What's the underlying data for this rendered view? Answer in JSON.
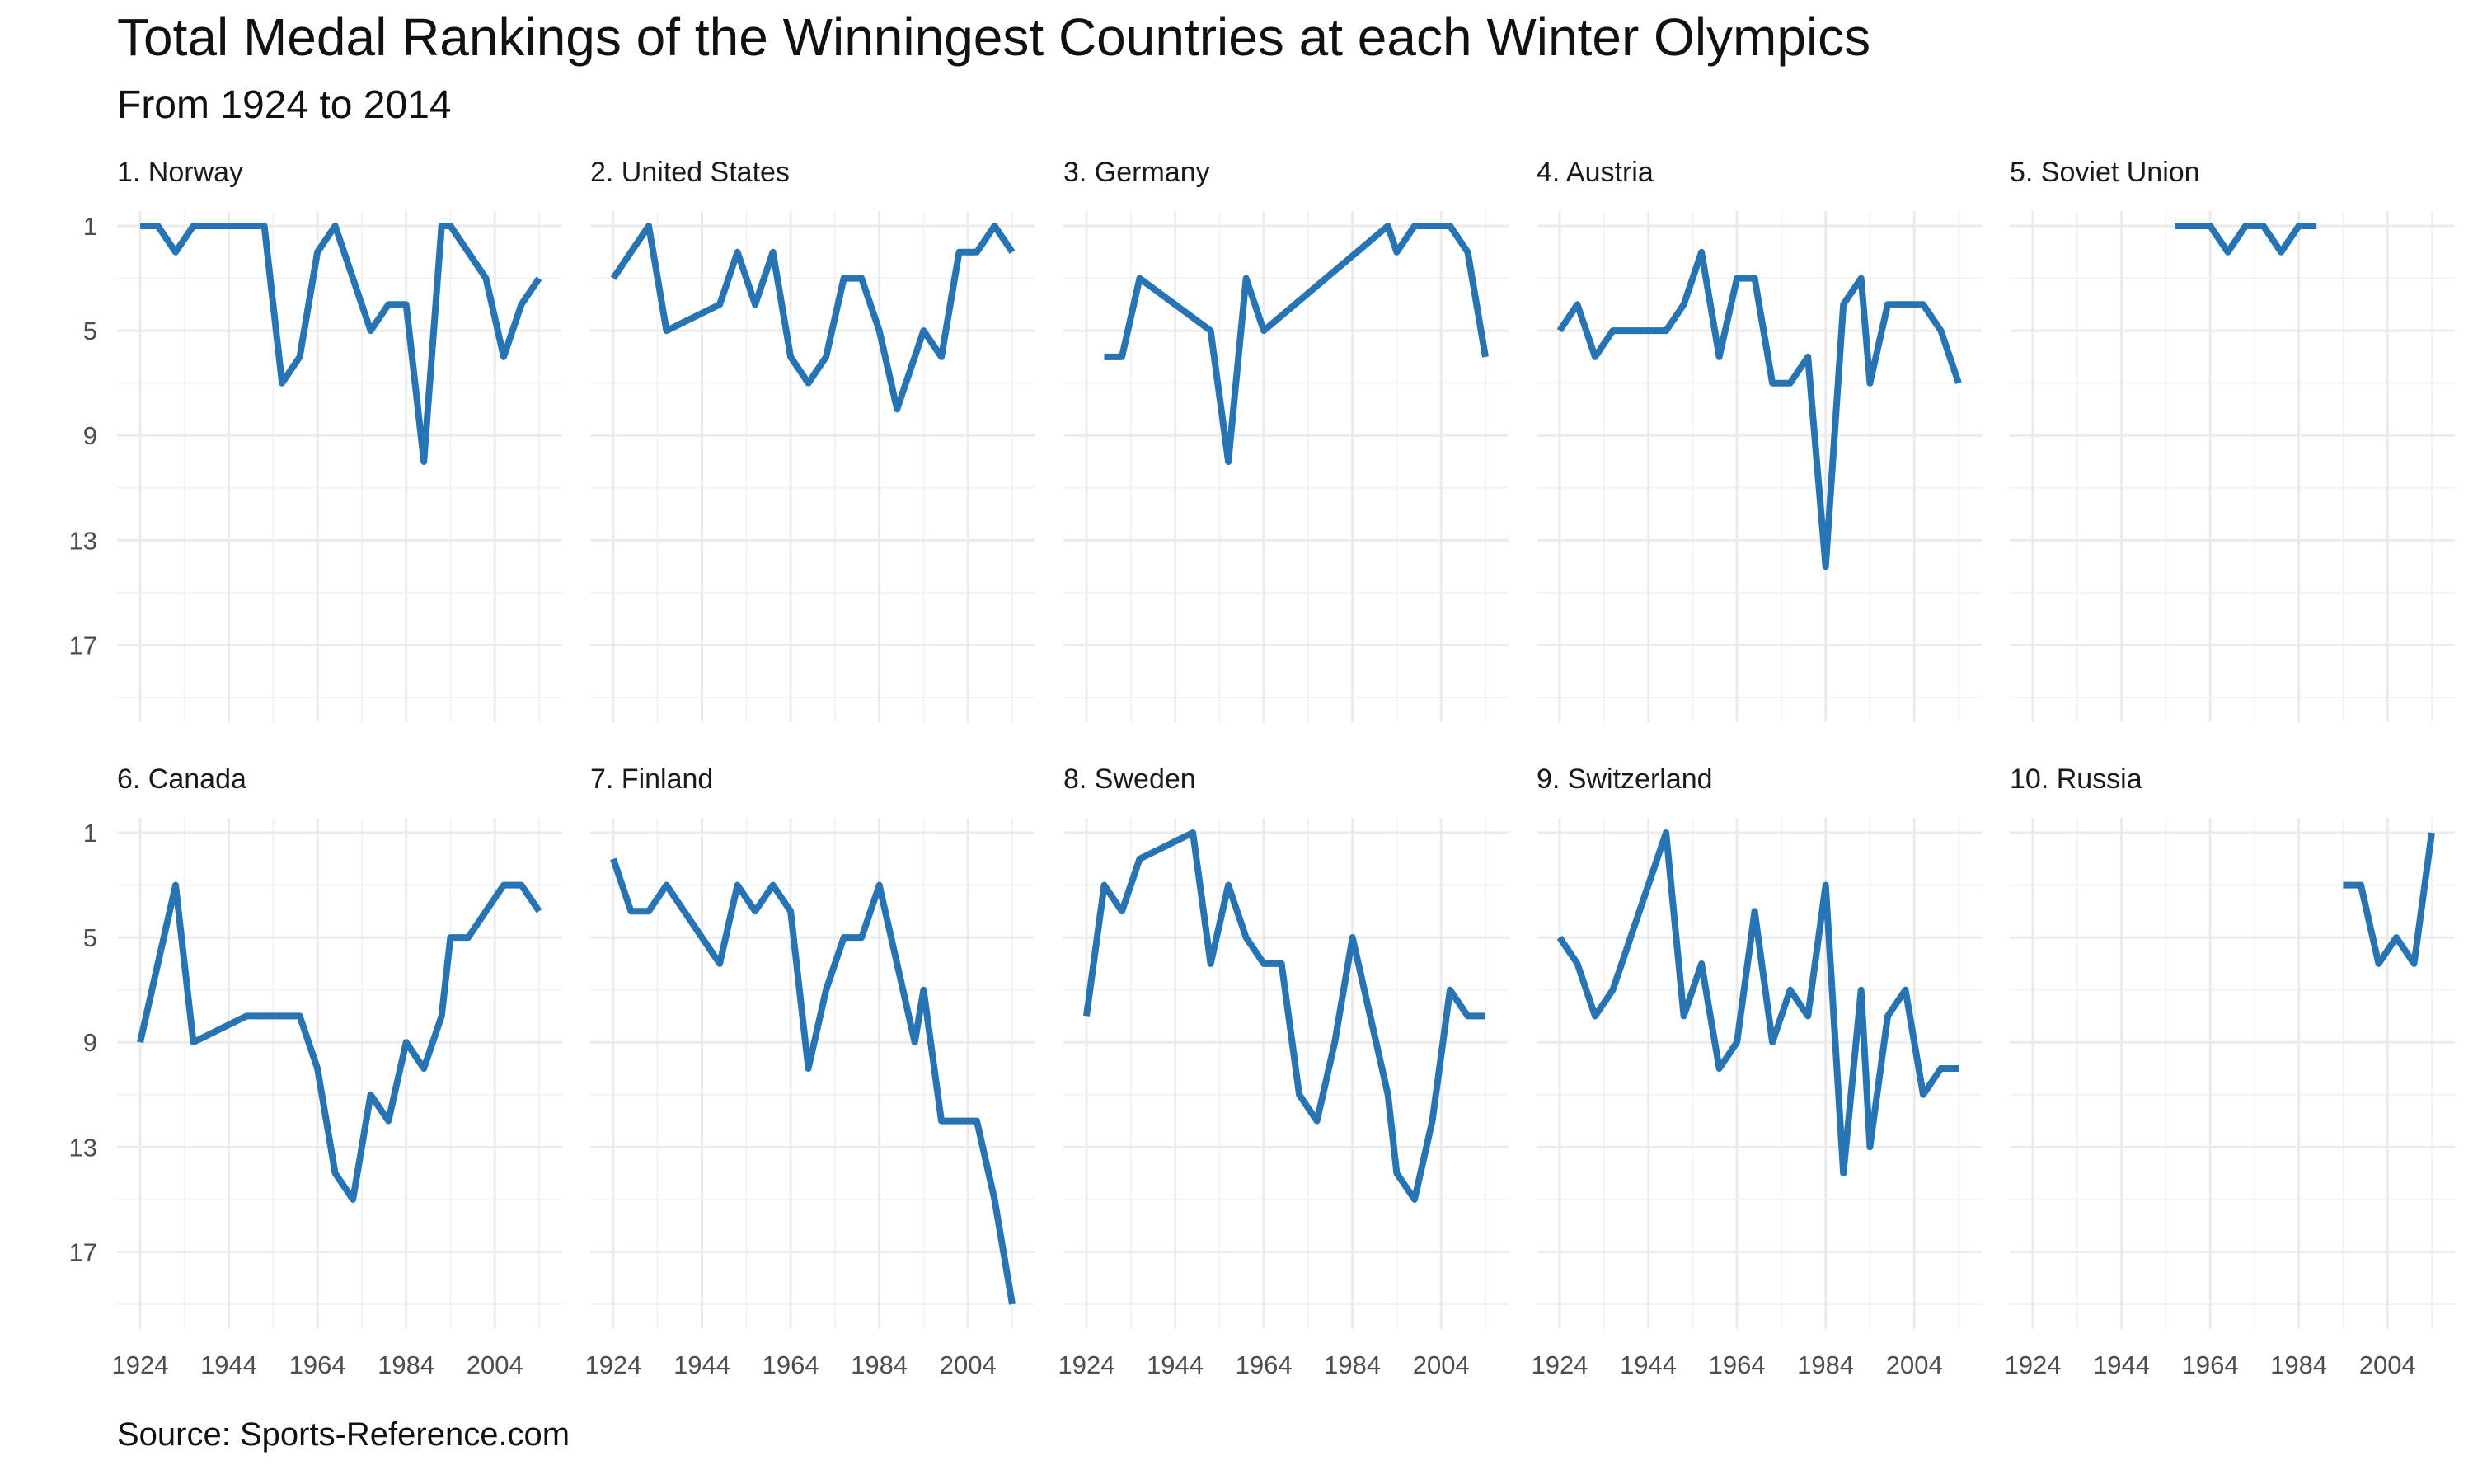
{
  "title": "Total Medal Rankings of the Winningest Countries at each Winter Olympics",
  "subtitle": "From 1924 to 2014",
  "caption": "Source: Sports-Reference.com",
  "chart_data": {
    "type": "line",
    "facet_layout": "2 rows x 5 columns",
    "series_color": "#2774b5",
    "xlim": [
      1924,
      2014
    ],
    "x_ticks": [
      "1924",
      "1944",
      "1964",
      "1984",
      "2004"
    ],
    "ylim": [
      1,
      19
    ],
    "y_reversed": true,
    "y_ticks": [
      "1",
      "5",
      "9",
      "13",
      "17"
    ],
    "grid": true,
    "panels": [
      {
        "label": "1. Norway",
        "x": [
          1924,
          1928,
          1932,
          1936,
          1948,
          1952,
          1956,
          1960,
          1964,
          1968,
          1972,
          1976,
          1980,
          1984,
          1988,
          1992,
          1994,
          1998,
          2002,
          2006,
          2010,
          2014
        ],
        "y": [
          1,
          1,
          2,
          1,
          1,
          1,
          7,
          6,
          2,
          1,
          3,
          5,
          4,
          4,
          10,
          1,
          1,
          2,
          3,
          6,
          4,
          3
        ]
      },
      {
        "label": "2. United States",
        "x": [
          1924,
          1928,
          1932,
          1936,
          1948,
          1952,
          1956,
          1960,
          1964,
          1968,
          1972,
          1976,
          1980,
          1984,
          1988,
          1992,
          1994,
          1998,
          2002,
          2006,
          2010,
          2014
        ],
        "y": [
          3,
          2,
          1,
          5,
          4,
          2,
          4,
          2,
          6,
          7,
          6,
          3,
          3,
          5,
          8,
          6,
          5,
          6,
          2,
          2,
          1,
          2
        ]
      },
      {
        "label": "3. Germany",
        "x": [
          1928,
          1932,
          1936,
          1952,
          1956,
          1960,
          1964,
          1992,
          1994,
          1998,
          2002,
          2006,
          2010,
          2014
        ],
        "y": [
          6,
          6,
          3,
          5,
          10,
          3,
          5,
          1,
          2,
          1,
          1,
          1,
          2,
          6
        ]
      },
      {
        "label": "4. Austria",
        "x": [
          1924,
          1928,
          1932,
          1936,
          1948,
          1952,
          1956,
          1960,
          1964,
          1968,
          1972,
          1976,
          1980,
          1984,
          1988,
          1992,
          1994,
          1998,
          2002,
          2006,
          2010,
          2014
        ],
        "y": [
          5,
          4,
          6,
          5,
          5,
          4,
          2,
          6,
          3,
          3,
          7,
          7,
          6,
          14,
          4,
          3,
          7,
          4,
          4,
          4,
          5,
          7
        ]
      },
      {
        "label": "5. Soviet Union",
        "x": [
          1956,
          1960,
          1964,
          1968,
          1972,
          1976,
          1980,
          1984,
          1988
        ],
        "y": [
          1,
          1,
          1,
          2,
          1,
          1,
          2,
          1,
          1
        ]
      },
      {
        "label": "6. Canada",
        "x": [
          1924,
          1928,
          1932,
          1936,
          1948,
          1952,
          1956,
          1960,
          1964,
          1968,
          1972,
          1976,
          1980,
          1984,
          1988,
          1992,
          1994,
          1998,
          2002,
          2006,
          2010,
          2014
        ],
        "y": [
          9,
          6,
          3,
          9,
          8,
          8,
          8,
          8,
          10,
          14,
          15,
          11,
          12,
          9,
          10,
          8,
          5,
          5,
          4,
          3,
          3,
          4
        ]
      },
      {
        "label": "7. Finland",
        "x": [
          1924,
          1928,
          1932,
          1936,
          1948,
          1952,
          1956,
          1960,
          1964,
          1968,
          1972,
          1976,
          1980,
          1984,
          1988,
          1992,
          1994,
          1998,
          2002,
          2006,
          2010,
          2014
        ],
        "y": [
          2,
          4,
          4,
          3,
          6,
          3,
          4,
          3,
          4,
          10,
          7,
          5,
          5,
          3,
          6,
          9,
          7,
          12,
          12,
          12,
          15,
          19
        ]
      },
      {
        "label": "8. Sweden",
        "x": [
          1924,
          1928,
          1932,
          1936,
          1948,
          1952,
          1956,
          1960,
          1964,
          1968,
          1972,
          1976,
          1980,
          1984,
          1988,
          1992,
          1994,
          1998,
          2002,
          2006,
          2010,
          2014
        ],
        "y": [
          8,
          3,
          4,
          2,
          1,
          6,
          3,
          5,
          6,
          6,
          11,
          12,
          9,
          5,
          8,
          11,
          14,
          15,
          12,
          7,
          8,
          8
        ]
      },
      {
        "label": "9. Switzerland",
        "x": [
          1924,
          1928,
          1932,
          1936,
          1948,
          1952,
          1956,
          1960,
          1964,
          1968,
          1972,
          1976,
          1980,
          1984,
          1988,
          1992,
          1994,
          1998,
          2002,
          2006,
          2010,
          2014
        ],
        "y": [
          5,
          6,
          8,
          7,
          1,
          8,
          6,
          10,
          9,
          4,
          9,
          7,
          8,
          3,
          14,
          7,
          13,
          8,
          7,
          11,
          10,
          10
        ]
      },
      {
        "label": "10. Russia",
        "x": [
          1994,
          1998,
          2002,
          2006,
          2010,
          2014
        ],
        "y": [
          3,
          3,
          6,
          5,
          6,
          1
        ]
      }
    ]
  }
}
